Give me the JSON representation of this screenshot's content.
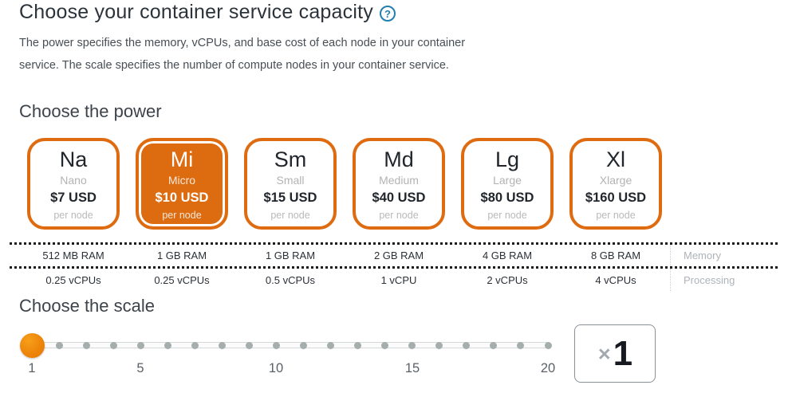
{
  "header": {
    "title": "Choose your container service capacity",
    "help_label": "?",
    "description": "The power specifies the memory, vCPUs, and base cost of each node in your container service. The scale specifies the number of compute nodes in your container service."
  },
  "power": {
    "heading": "Choose the power",
    "options": [
      {
        "abbr": "Na",
        "name": "Nano",
        "price": "$7 USD",
        "unit": "per node",
        "ram": "512 MB RAM",
        "cpu": "0.25 vCPUs",
        "selected": false
      },
      {
        "abbr": "Mi",
        "name": "Micro",
        "price": "$10 USD",
        "unit": "per node",
        "ram": "1 GB RAM",
        "cpu": "0.25 vCPUs",
        "selected": true
      },
      {
        "abbr": "Sm",
        "name": "Small",
        "price": "$15 USD",
        "unit": "per node",
        "ram": "1 GB RAM",
        "cpu": "0.5 vCPUs",
        "selected": false
      },
      {
        "abbr": "Md",
        "name": "Medium",
        "price": "$40 USD",
        "unit": "per node",
        "ram": "2 GB RAM",
        "cpu": "1 vCPU",
        "selected": false
      },
      {
        "abbr": "Lg",
        "name": "Large",
        "price": "$80 USD",
        "unit": "per node",
        "ram": "4 GB RAM",
        "cpu": "2 vCPUs",
        "selected": false
      },
      {
        "abbr": "Xl",
        "name": "Xlarge",
        "price": "$160 USD",
        "unit": "per node",
        "ram": "8 GB RAM",
        "cpu": "4 vCPUs",
        "selected": false
      }
    ],
    "row_labels": {
      "memory": "Memory",
      "processing": "Processing"
    }
  },
  "scale": {
    "heading": "Choose the scale",
    "slider": {
      "min": 1,
      "max": 20,
      "value": 1,
      "tick_labels": [
        "1",
        "5",
        "10",
        "15",
        "20"
      ]
    },
    "display": {
      "prefix": "×",
      "value": "1"
    }
  },
  "colors": {
    "accent_orange": "#df6b10",
    "selected_card_fill": "#dd6b10",
    "handle_orange": "#ee8a0c",
    "help_blue": "#2380ae",
    "dark_text": "#21262c",
    "muted_text": "#b3b3b3"
  }
}
